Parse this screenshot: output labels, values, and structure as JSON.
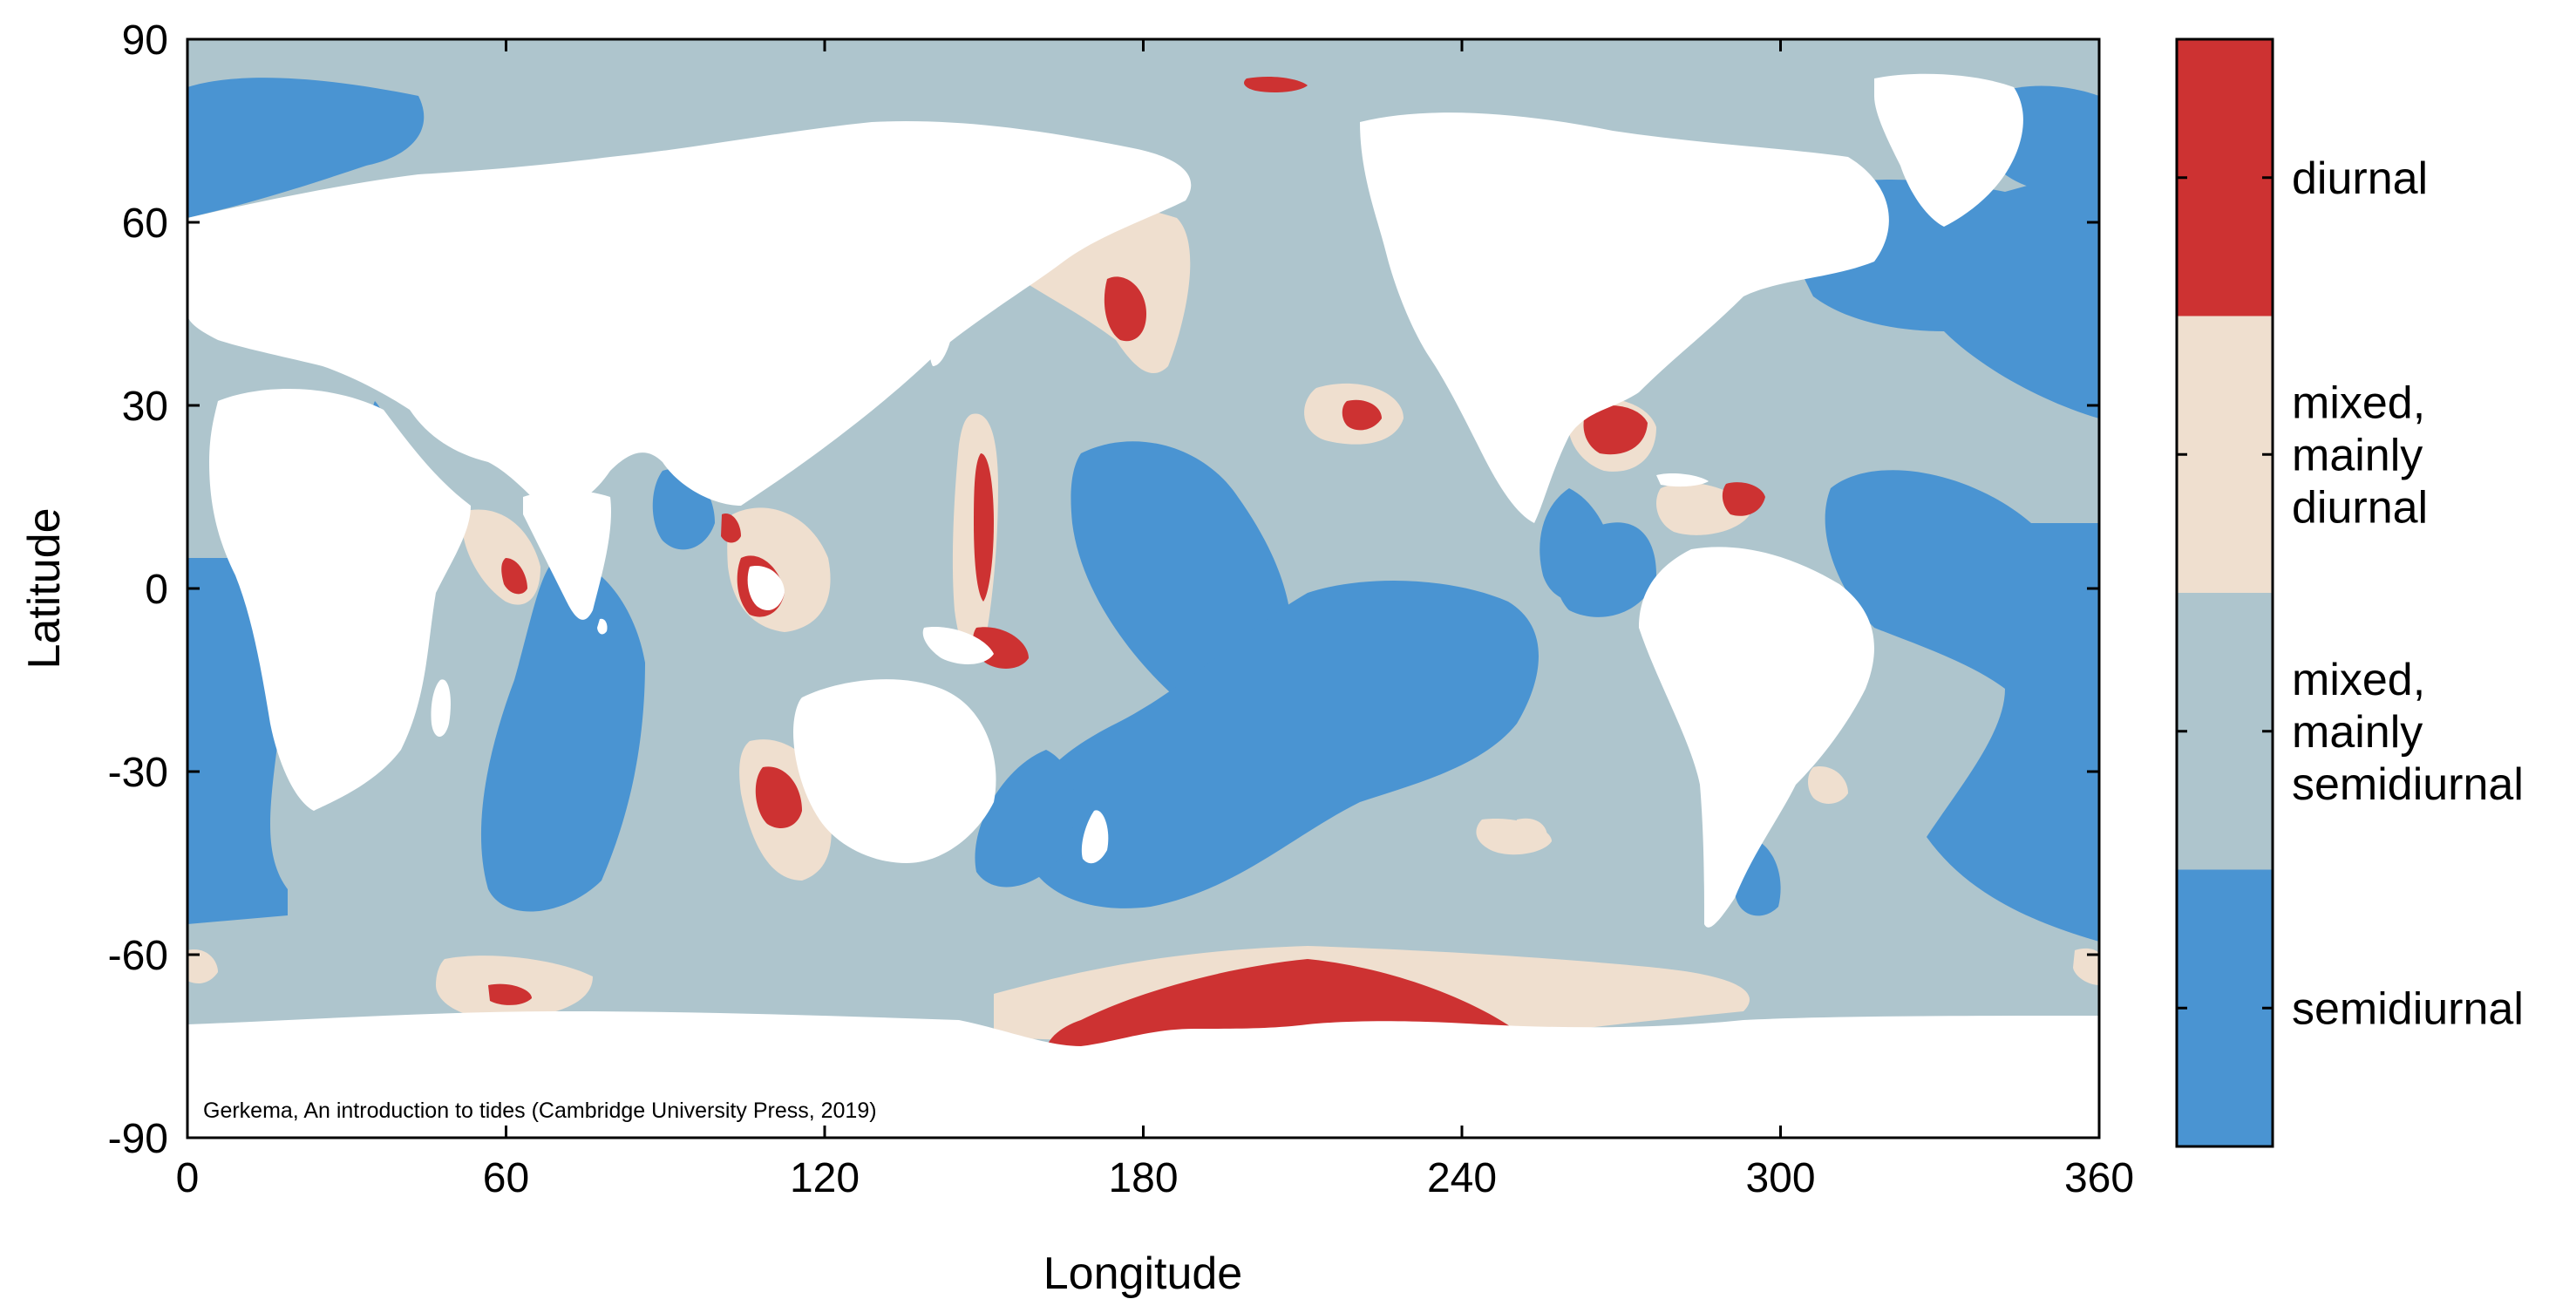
{
  "colors": {
    "diurnal": "#cd3232",
    "mixed_mainly_diurnal": "#efdfcf",
    "mixed_mainly_semidiurnal": "#aec5cd",
    "semidiurnal": "#4a94d2",
    "land": "#ffffff"
  },
  "map": {
    "xlabel": "Longitude",
    "ylabel": "Latitude",
    "xlim": [
      0,
      360
    ],
    "ylim": [
      -90,
      90
    ],
    "xticks": [
      "0",
      "60",
      "120",
      "180",
      "240",
      "300",
      "360"
    ],
    "yticks": [
      "90",
      "60",
      "30",
      "0",
      "-30",
      "-60",
      "-90"
    ],
    "credit": "Gerkema, An introduction to tides (Cambridge University Press, 2019)"
  },
  "legend": {
    "categories": [
      {
        "key": "diurnal",
        "lines": [
          "diurnal"
        ]
      },
      {
        "key": "mixed_mainly_diurnal",
        "lines": [
          "mixed,",
          "mainly",
          "diurnal"
        ]
      },
      {
        "key": "mixed_mainly_semidiurnal",
        "lines": [
          "mixed,",
          "mainly",
          "semidiurnal"
        ]
      },
      {
        "key": "semidiurnal",
        "lines": [
          "semidiurnal"
        ]
      }
    ]
  }
}
